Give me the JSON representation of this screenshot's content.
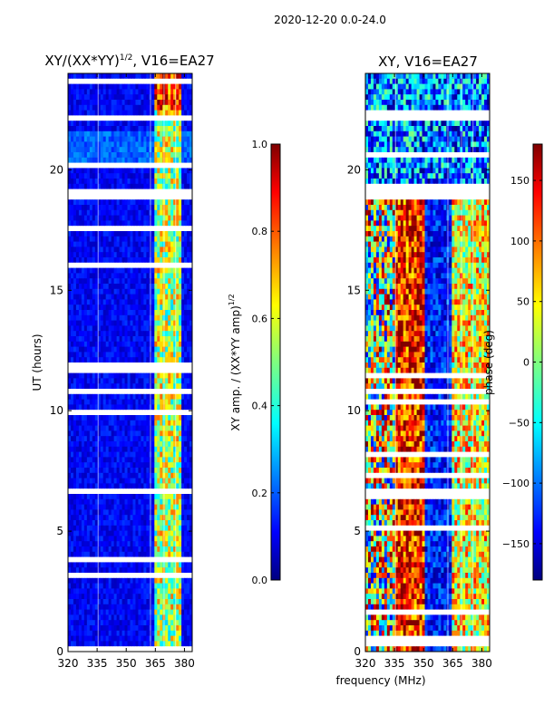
{
  "figure": {
    "suptitle": "2020-12-20 0.0-24.0"
  },
  "colors": {
    "jet_dark_blue": "#00007f",
    "jet_blue": "#0000ff",
    "jet_cyan": "#00ffff",
    "jet_yellow": "#ffff00",
    "jet_red": "#ff0000",
    "jet_dark_red": "#7f0000",
    "axis": "#000000",
    "gap": "#ffffff"
  },
  "chart_data": [
    {
      "type": "heatmap",
      "name": "amplitude-panel",
      "title_main": "XY/(XX*YY)",
      "title_exp": "1/2",
      "title_tail": ", V16=EA27",
      "xlabel": "",
      "ylabel": "UT (hours)",
      "xlim": [
        320,
        384
      ],
      "ylim": [
        0,
        24
      ],
      "xticks": [
        320,
        335,
        350,
        365,
        380
      ],
      "yticks": [
        0,
        5,
        10,
        15,
        20
      ],
      "colorbar": {
        "label_main": "XY amp. / (XX*YY amp)",
        "label_exp": "1/2",
        "range": [
          0.0,
          1.0
        ],
        "ticks": [
          "0.0",
          "0.2",
          "0.4",
          "0.6",
          "0.8",
          "1.0"
        ],
        "tick_values": [
          0.0,
          0.2,
          0.4,
          0.6,
          0.8,
          1.0
        ]
      },
      "bright_band_mhz": [
        364,
        378
      ],
      "typical_background": 0.12,
      "typical_band_value": 0.55,
      "flagged_ut_ranges": [
        [
          18.7,
          19.2
        ],
        [
          6.6,
          6.8
        ],
        [
          2.8,
          2.9
        ],
        [
          12.8,
          12.9
        ],
        [
          10.8,
          10.9
        ],
        [
          22.0,
          22.3
        ]
      ]
    },
    {
      "type": "heatmap",
      "name": "phase-panel",
      "title_main": "XY, V16=EA27",
      "xlabel": "frequency (MHz)",
      "ylabel": "",
      "xlim": [
        320,
        384
      ],
      "ylim": [
        0,
        24
      ],
      "xticks": [
        320,
        335,
        350,
        365,
        380
      ],
      "yticks": [
        0,
        5,
        10,
        15,
        20
      ],
      "colorbar": {
        "label_main": "phase (deg)",
        "range": [
          -180,
          180
        ],
        "ticks": [
          "−150",
          "−100",
          "−50",
          "0",
          "50",
          "100",
          "150"
        ],
        "tick_values": [
          -150,
          -100,
          -50,
          0,
          50,
          100,
          150
        ]
      },
      "flagged_ut_ranges": [
        [
          18.7,
          19.2
        ],
        [
          6.6,
          6.8
        ],
        [
          2.8,
          2.9
        ],
        [
          12.8,
          12.9
        ],
        [
          10.8,
          10.9
        ],
        [
          22.0,
          22.3
        ]
      ]
    }
  ]
}
